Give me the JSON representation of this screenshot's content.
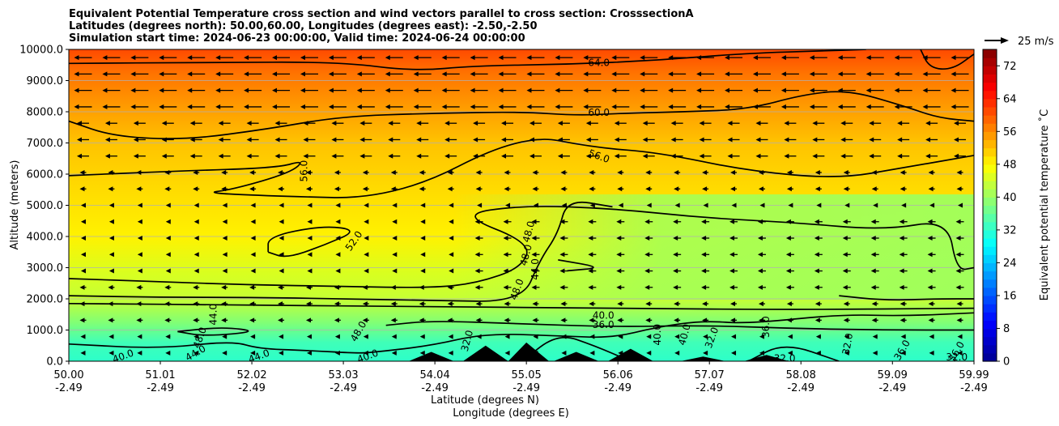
{
  "title_lines": [
    "Equivalent Potential Temperature cross section and wind vectors parallel to cross section: CrosssectionA",
    "Latitudes (degrees north): 50.00,60.00, Longitudes (degrees east): -2.50,-2.50",
    "Simulation start time: 2024-06-23 00:00:00, Valid time: 2024-06-24 00:00:00"
  ],
  "wind_key_label": "25 m/s",
  "colorbar_label": "Equivalent potential temperature ˚C",
  "colors": {
    "jet": [
      "#00008f",
      "#0000ff",
      "#007fff",
      "#00ffff",
      "#7fff7f",
      "#ffff00",
      "#ff7f00",
      "#ff0000",
      "#7f0000"
    ],
    "terrain": "#000000"
  },
  "chart_data": {
    "type": "heatmap",
    "subtype": "filled-contour cross section with contour lines, quiver wind vectors and terrain",
    "ylabel": "Altitude (meters)",
    "xlabel_lines": [
      "Latitude (degrees N)",
      "Longitude (degrees E)"
    ],
    "ylim": [
      0,
      10000
    ],
    "y_ticks": [
      "0.0",
      "1000.0",
      "2000.0",
      "3000.0",
      "4000.0",
      "5000.0",
      "6000.0",
      "7000.0",
      "8000.0",
      "9000.0",
      "10000.0"
    ],
    "x_ticks": [
      {
        "lat": "50.00",
        "lon": "-2.49"
      },
      {
        "lat": "51.01",
        "lon": "-2.49"
      },
      {
        "lat": "52.02",
        "lon": "-2.49"
      },
      {
        "lat": "53.03",
        "lon": "-2.49"
      },
      {
        "lat": "54.04",
        "lon": "-2.49"
      },
      {
        "lat": "55.05",
        "lon": "-2.49"
      },
      {
        "lat": "56.06",
        "lon": "-2.49"
      },
      {
        "lat": "57.07",
        "lon": "-2.49"
      },
      {
        "lat": "58.08",
        "lon": "-2.49"
      },
      {
        "lat": "59.09",
        "lon": "-2.49"
      },
      {
        "lat": "59.99",
        "lon": "-2.49"
      }
    ],
    "colorbar": {
      "min": 0,
      "max": 76,
      "ticks": [
        0,
        8,
        16,
        24,
        32,
        40,
        48,
        56,
        64,
        72
      ]
    },
    "grid": "horizontal",
    "contours": [
      {
        "value": 64,
        "label": "64.0",
        "points": [
          [
            50.0,
            9550
          ],
          [
            51.5,
            9580
          ],
          [
            53.0,
            9600
          ],
          [
            53.8,
            9300
          ],
          [
            54.5,
            9480
          ],
          [
            55.5,
            9520
          ],
          [
            56.5,
            9650
          ],
          [
            57.5,
            9880
          ],
          [
            58.3,
            9950
          ],
          [
            58.8,
            10000
          ]
        ]
      },
      {
        "value": 64,
        "label": "",
        "points": [
          [
            59.4,
            10000
          ],
          [
            59.5,
            9400
          ],
          [
            59.75,
            9350
          ],
          [
            59.99,
            9850
          ]
        ]
      },
      {
        "value": 60,
        "label": "60.0",
        "points": [
          [
            50.0,
            7700
          ],
          [
            50.5,
            7200
          ],
          [
            51.3,
            7100
          ],
          [
            52.2,
            7450
          ],
          [
            53.0,
            7850
          ],
          [
            54.0,
            7950
          ],
          [
            55.0,
            8000
          ],
          [
            55.6,
            7880
          ],
          [
            56.1,
            7950
          ],
          [
            56.8,
            8000
          ],
          [
            57.5,
            8080
          ],
          [
            58.1,
            8550
          ],
          [
            58.6,
            8700
          ],
          [
            59.2,
            8200
          ],
          [
            59.6,
            7800
          ],
          [
            59.99,
            7700
          ]
        ]
      },
      {
        "value": 56,
        "label": "56.0",
        "points": [
          [
            50.0,
            5950
          ],
          [
            51.2,
            6100
          ],
          [
            52.3,
            6200
          ],
          [
            52.6,
            6450
          ],
          [
            52.45,
            6050
          ],
          [
            51.8,
            5500
          ],
          [
            51.5,
            5400
          ],
          [
            52.2,
            5300
          ],
          [
            53.6,
            5200
          ],
          [
            55.0,
            7300
          ],
          [
            55.8,
            6850
          ],
          [
            56.5,
            6700
          ],
          [
            57.5,
            6100
          ],
          [
            58.5,
            5850
          ],
          [
            59.2,
            6200
          ],
          [
            59.99,
            6600
          ]
        ]
      },
      {
        "value": 52,
        "label": "52.0",
        "points": [
          [
            50.0,
            2650
          ],
          [
            51.0,
            2550
          ],
          [
            52.0,
            2450
          ],
          [
            53.0,
            2400
          ],
          [
            54.0,
            2350
          ],
          [
            54.5,
            2500
          ],
          [
            55.0,
            3000
          ],
          [
            55.1,
            3800
          ],
          [
            54.3,
            4700
          ],
          [
            55.0,
            5000
          ],
          [
            56.0,
            4900
          ],
          [
            57.0,
            4600
          ],
          [
            58.0,
            4450
          ],
          [
            59.0,
            4200
          ],
          [
            59.7,
            4550
          ],
          [
            59.8,
            2900
          ],
          [
            59.99,
            3000
          ]
        ]
      },
      {
        "value": 52,
        "label": "",
        "points": [
          [
            52.2,
            3500
          ],
          [
            52.2,
            4000
          ],
          [
            52.8,
            4350
          ],
          [
            53.2,
            4200
          ],
          [
            52.8,
            3700
          ],
          [
            52.4,
            3300
          ],
          [
            52.2,
            3500
          ]
        ]
      },
      {
        "value": 48,
        "label": "48.0",
        "points": [
          [
            50.0,
            2100
          ],
          [
            51.0,
            2050
          ],
          [
            52.0,
            2050
          ],
          [
            53.0,
            2000
          ],
          [
            54.0,
            1950
          ],
          [
            55.0,
            1900
          ],
          [
            55.2,
            3250
          ],
          [
            55.4,
            4100
          ],
          [
            55.5,
            5200
          ],
          [
            56.0,
            4950
          ]
        ]
      },
      {
        "value": 48,
        "label": "",
        "points": [
          [
            58.5,
            2100
          ],
          [
            59.0,
            1950
          ],
          [
            59.6,
            2000
          ],
          [
            59.99,
            2000
          ]
        ]
      },
      {
        "value": 44,
        "label": "44.0",
        "points": [
          [
            50.0,
            1850
          ],
          [
            52.0,
            1800
          ],
          [
            54.0,
            1750
          ],
          [
            56.0,
            1700
          ],
          [
            58.0,
            1650
          ],
          [
            59.99,
            1700
          ]
        ]
      },
      {
        "value": 44,
        "label": "",
        "points": [
          [
            55.4,
            3250
          ],
          [
            55.9,
            3000
          ],
          [
            55.5,
            2900
          ]
        ]
      },
      {
        "value": 40,
        "label": "40.0",
        "points": [
          [
            50.0,
            550
          ],
          [
            51.0,
            400
          ],
          [
            51.8,
            650
          ],
          [
            52.1,
            400
          ],
          [
            52.6,
            350
          ],
          [
            53.2,
            250
          ],
          [
            53.4,
            300
          ],
          [
            54.0,
            500
          ],
          [
            54.6,
            900
          ],
          [
            55.5,
            800
          ],
          [
            56.0,
            750
          ],
          [
            56.5,
            1100
          ],
          [
            57.0,
            1300
          ],
          [
            57.5,
            1200
          ],
          [
            58.5,
            1500
          ],
          [
            59.2,
            1450
          ],
          [
            59.99,
            1550
          ]
        ]
      },
      {
        "value": 40,
        "label": "",
        "points": [
          [
            51.2,
            950
          ],
          [
            51.7,
            1100
          ],
          [
            52.1,
            950
          ],
          [
            51.5,
            800
          ],
          [
            51.2,
            950
          ]
        ]
      },
      {
        "value": 36,
        "label": "36.0",
        "points": [
          [
            53.5,
            1150
          ],
          [
            54.0,
            1300
          ],
          [
            55.0,
            1200
          ],
          [
            56.0,
            1100
          ],
          [
            57.0,
            1150
          ],
          [
            58.0,
            1050
          ],
          [
            59.0,
            1000
          ],
          [
            59.99,
            1000
          ]
        ]
      },
      {
        "value": 32,
        "label": "32.0",
        "points": [
          [
            55.0,
            0
          ],
          [
            55.4,
            900
          ],
          [
            55.8,
            500
          ],
          [
            56.2,
            0
          ]
        ]
      },
      {
        "value": 32,
        "label": "",
        "points": [
          [
            57.5,
            0
          ],
          [
            57.9,
            600
          ],
          [
            58.5,
            0
          ]
        ]
      }
    ],
    "contour_labels": [
      {
        "text": "64.0",
        "x": 55.85,
        "y": 9560,
        "angle": 0
      },
      {
        "text": "60.0",
        "x": 55.85,
        "y": 7960,
        "angle": 0
      },
      {
        "text": "56.0",
        "x": 55.85,
        "y": 6560,
        "angle": 20
      },
      {
        "text": "56.0",
        "x": 52.6,
        "y": 6100,
        "angle": -90
      },
      {
        "text": "52.0",
        "x": 53.15,
        "y": 3850,
        "angle": -55
      },
      {
        "text": "48.0",
        "x": 55.08,
        "y": 4150,
        "angle": -75
      },
      {
        "text": "48.0",
        "x": 55.05,
        "y": 3400,
        "angle": -75
      },
      {
        "text": "48.0",
        "x": 54.95,
        "y": 2300,
        "angle": -70
      },
      {
        "text": "44.0",
        "x": 55.15,
        "y": 2950,
        "angle": -90
      },
      {
        "text": "44.0",
        "x": 51.6,
        "y": 1500,
        "angle": -90
      },
      {
        "text": "48.0",
        "x": 51.45,
        "y": 750,
        "angle": -70
      },
      {
        "text": "48.0",
        "x": 53.2,
        "y": 950,
        "angle": -60
      },
      {
        "text": "40.0",
        "x": 55.9,
        "y": 1450,
        "angle": 0
      },
      {
        "text": "36.0",
        "x": 55.9,
        "y": 1150,
        "angle": 0
      },
      {
        "text": "40.0",
        "x": 56.5,
        "y": 850,
        "angle": -90
      },
      {
        "text": "40.0",
        "x": 56.8,
        "y": 850,
        "angle": -75
      },
      {
        "text": "32.0",
        "x": 54.4,
        "y": 650,
        "angle": -75
      },
      {
        "text": "32.0",
        "x": 57.1,
        "y": 750,
        "angle": -70
      },
      {
        "text": "36.0",
        "x": 57.7,
        "y": 1100,
        "angle": -90
      },
      {
        "text": "32.0",
        "x": 58.6,
        "y": 550,
        "angle": -80
      },
      {
        "text": "36.0",
        "x": 59.2,
        "y": 350,
        "angle": -60
      },
      {
        "text": "36.0",
        "x": 59.8,
        "y": 300,
        "angle": -60
      },
      {
        "text": "32.0",
        "x": 59.8,
        "y": 120,
        "angle": 0
      },
      {
        "text": "40.0",
        "x": 50.6,
        "y": 150,
        "angle": -20
      },
      {
        "text": "44.0",
        "x": 51.4,
        "y": 250,
        "angle": -30
      },
      {
        "text": "44.0",
        "x": 52.1,
        "y": 150,
        "angle": -20
      },
      {
        "text": "40.0",
        "x": 53.3,
        "y": 150,
        "angle": -20
      },
      {
        "text": "32.0",
        "x": 57.9,
        "y": 80,
        "angle": 0
      }
    ],
    "wind_field": "arrows point toward decreasing latitude (southward along section); largest in the upper levels, near zero in the mid-levels",
    "wind_key_speed": 25,
    "terrain_peaks": [
      [
        54.0,
        300
      ],
      [
        54.6,
        500
      ],
      [
        55.05,
        600
      ],
      [
        55.6,
        300
      ],
      [
        56.2,
        400
      ],
      [
        57.0,
        150
      ],
      [
        57.7,
        200
      ]
    ]
  }
}
